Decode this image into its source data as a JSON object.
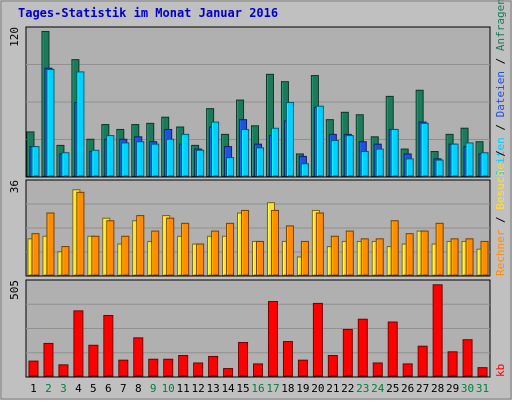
{
  "title": "Tages-Statistik im Monat Januar 2016",
  "colors": {
    "background": "#c0c0c0",
    "panel": "#b0b0b0",
    "title": "#0000cc",
    "weekend_day": "#008040",
    "weekday": "#000000",
    "anfragen": "#1c7a5a",
    "dateien": "#2050e0",
    "seiten": "#00d0ff",
    "besuche": "#ffe030",
    "rechner": "#ff8c00",
    "kb": "#ff0000"
  },
  "right_labels": {
    "anfragen": "Anfragen",
    "dateien": "Dateien",
    "seiten": "Seiten",
    "besuche": "Besuche",
    "rechner": "Rechner",
    "kb": "kb",
    "sep1": " / ",
    "sep2": " / ",
    "sep3": " / ",
    "sep4": " / "
  },
  "chart_data": [
    {
      "type": "bar",
      "panel": "Anfragen / Dateien / Seiten",
      "ymax_label": "120",
      "ylim": [
        0,
        120
      ],
      "categories": [
        "1",
        "2",
        "3",
        "4",
        "5",
        "6",
        "7",
        "8",
        "9",
        "10",
        "11",
        "12",
        "13",
        "14",
        "15",
        "16",
        "17",
        "18",
        "19",
        "20",
        "21",
        "22",
        "23",
        "24",
        "25",
        "26",
        "27",
        "28",
        "29",
        "30",
        "31"
      ],
      "series": [
        {
          "name": "Anfragen",
          "values": [
            36,
            118,
            25,
            95,
            30,
            42,
            38,
            42,
            43,
            48,
            40,
            25,
            55,
            34,
            62,
            41,
            83,
            77,
            18,
            82,
            46,
            52,
            50,
            32,
            65,
            22,
            70,
            20,
            34,
            39,
            28
          ]
        },
        {
          "name": "Dateien",
          "values": [
            24,
            88,
            18,
            60,
            20,
            30,
            30,
            32,
            28,
            38,
            26,
            22,
            40,
            24,
            46,
            26,
            33,
            45,
            16,
            56,
            34,
            34,
            28,
            26,
            38,
            18,
            44,
            14,
            26,
            24,
            18
          ]
        },
        {
          "name": "Seiten",
          "values": [
            24,
            87,
            19,
            85,
            21,
            33,
            27,
            28,
            26,
            30,
            34,
            21,
            44,
            15,
            38,
            23,
            39,
            60,
            10,
            57,
            29,
            33,
            20,
            22,
            38,
            14,
            43,
            13,
            26,
            27,
            19
          ]
        }
      ]
    },
    {
      "type": "bar",
      "panel": "Besuche / Rechner",
      "ymax_label": "36",
      "ylim": [
        0,
        36
      ],
      "categories": [
        "1",
        "2",
        "3",
        "4",
        "5",
        "6",
        "7",
        "8",
        "9",
        "10",
        "11",
        "12",
        "13",
        "14",
        "15",
        "16",
        "17",
        "18",
        "19",
        "20",
        "21",
        "22",
        "23",
        "24",
        "25",
        "26",
        "27",
        "28",
        "29",
        "30",
        "31"
      ],
      "series": [
        {
          "name": "Besuche",
          "values": [
            14,
            15,
            9,
            33,
            15,
            22,
            12,
            21,
            13,
            23,
            15,
            12,
            15,
            15,
            24,
            13,
            28,
            13,
            7,
            25,
            11,
            13,
            13,
            13,
            11,
            12,
            17,
            12,
            13,
            13,
            10
          ]
        },
        {
          "name": "Rechner",
          "values": [
            16,
            24,
            11,
            32,
            15,
            21,
            15,
            23,
            17,
            22,
            20,
            12,
            17,
            20,
            25,
            13,
            25,
            19,
            13,
            24,
            15,
            17,
            14,
            14,
            21,
            16,
            17,
            20,
            14,
            14,
            13
          ]
        }
      ]
    },
    {
      "type": "bar",
      "panel": "kb",
      "ymax_label": "505",
      "ylim": [
        0,
        505
      ],
      "categories": [
        "1",
        "2",
        "3",
        "4",
        "5",
        "6",
        "7",
        "8",
        "9",
        "10",
        "11",
        "12",
        "13",
        "14",
        "15",
        "16",
        "17",
        "18",
        "19",
        "20",
        "21",
        "22",
        "23",
        "24",
        "25",
        "26",
        "27",
        "28",
        "29",
        "30",
        "31"
      ],
      "series": [
        {
          "name": "kb",
          "values": [
            80,
            175,
            60,
            350,
            165,
            325,
            85,
            205,
            90,
            90,
            110,
            70,
            105,
            40,
            180,
            65,
            400,
            185,
            85,
            390,
            110,
            250,
            305,
            70,
            290,
            65,
            160,
            490,
            130,
            195,
            45
          ]
        }
      ]
    }
  ],
  "x_labels": [
    "1",
    "2",
    "3",
    "4",
    "5",
    "6",
    "7",
    "8",
    "9",
    "10",
    "11",
    "12",
    "13",
    "14",
    "15",
    "16",
    "17",
    "18",
    "19",
    "20",
    "21",
    "22",
    "23",
    "24",
    "25",
    "26",
    "27",
    "28",
    "29",
    "30",
    "31"
  ],
  "weekend_days": [
    "2",
    "3",
    "9",
    "10",
    "16",
    "17",
    "23",
    "24",
    "30",
    "31"
  ]
}
